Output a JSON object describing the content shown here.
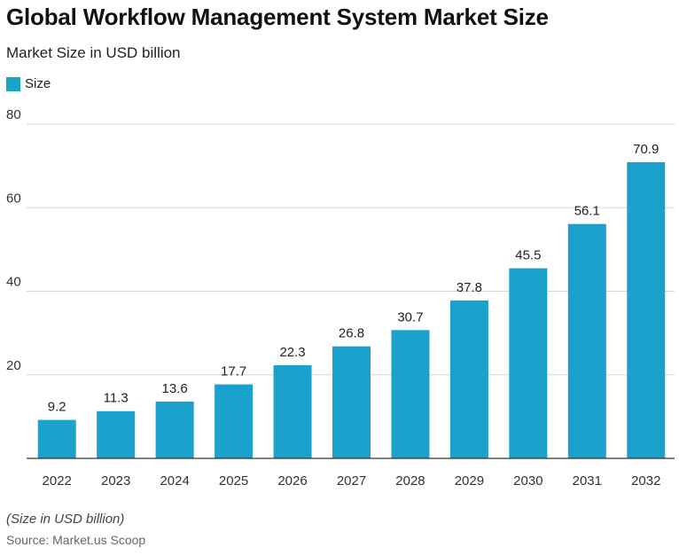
{
  "header": {
    "title": "Global Workflow Management System Market Size",
    "subtitle": "Market Size in USD billion"
  },
  "legend": {
    "label": "Size",
    "color": "#1ba2cc"
  },
  "footer": {
    "note": "(Size in USD billion)",
    "source": "Source: Market.us Scoop"
  },
  "chart_data": {
    "type": "bar",
    "title": "Global Workflow Management System Market Size",
    "subtitle": "Market Size in USD billion",
    "xlabel": "",
    "ylabel": "",
    "categories": [
      "2022",
      "2023",
      "2024",
      "2025",
      "2026",
      "2027",
      "2028",
      "2029",
      "2030",
      "2031",
      "2032"
    ],
    "series": [
      {
        "name": "Size",
        "color": "#1ba2cc",
        "values": [
          9.2,
          11.3,
          13.6,
          17.7,
          22.3,
          26.8,
          30.7,
          37.8,
          45.5,
          56.1,
          70.9
        ]
      }
    ],
    "ylim": [
      0,
      80
    ],
    "yticks": [
      20,
      40,
      60,
      80
    ],
    "grid": true,
    "legend_position": "top-left",
    "data_labels": true
  }
}
